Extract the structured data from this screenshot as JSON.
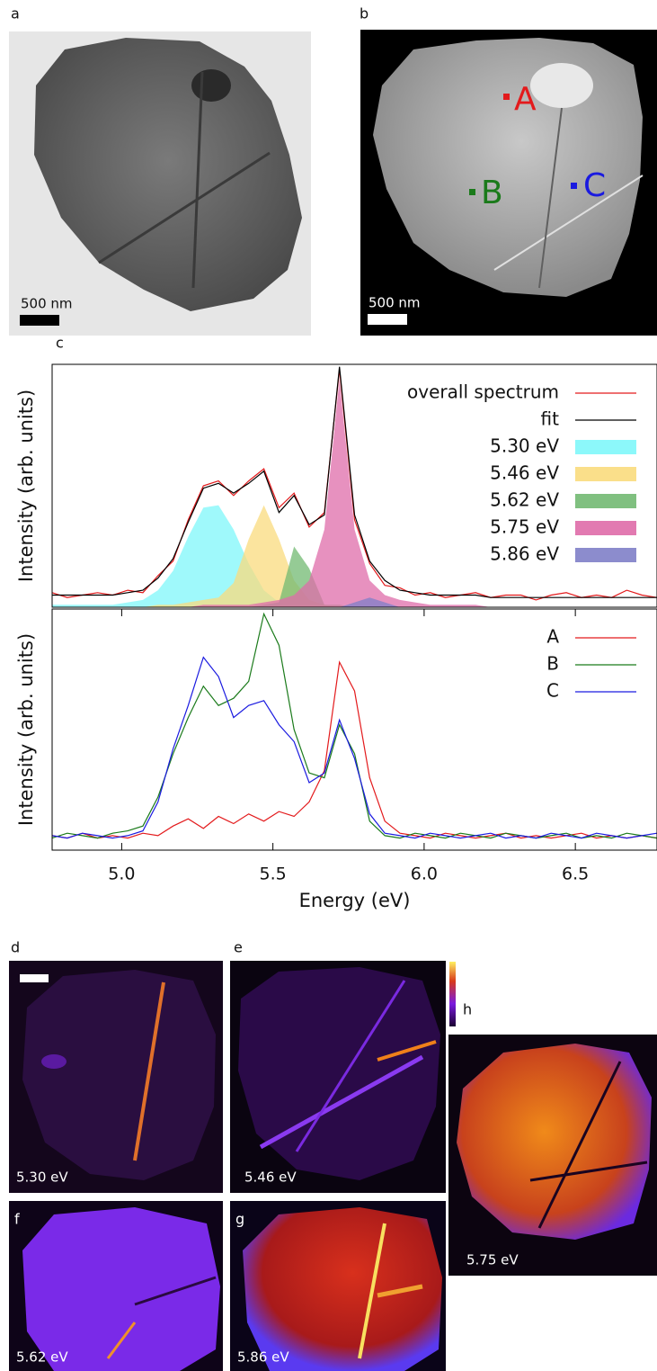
{
  "panels": {
    "a": {
      "label": "a",
      "scale_bar": "500 nm"
    },
    "b": {
      "label": "b",
      "scale_bar": "500 nm",
      "points": [
        "A",
        "B",
        "C"
      ]
    },
    "c": {
      "label": "c"
    },
    "d": {
      "label": "d",
      "energy": "5.30 eV"
    },
    "e": {
      "label": "e",
      "energy": "5.46 eV"
    },
    "f": {
      "label": "f",
      "energy": "5.62 eV"
    },
    "g": {
      "label": "g",
      "energy": "5.86 eV"
    },
    "h": {
      "label": "h",
      "energy": "5.75 eV"
    }
  },
  "chart_data": [
    {
      "type": "line",
      "ylabel": "Intensity (arb. units)",
      "xlim": [
        4.77,
        6.77
      ],
      "ylim": [
        0,
        1
      ],
      "x": [
        4.77,
        4.82,
        4.87,
        4.92,
        4.97,
        5.02,
        5.07,
        5.12,
        5.17,
        5.22,
        5.27,
        5.32,
        5.37,
        5.42,
        5.47,
        5.52,
        5.57,
        5.62,
        5.67,
        5.72,
        5.77,
        5.82,
        5.87,
        5.92,
        5.97,
        6.02,
        6.07,
        6.12,
        6.17,
        6.22,
        6.27,
        6.32,
        6.37,
        6.42,
        6.47,
        6.52,
        6.57,
        6.62,
        6.67,
        6.72,
        6.77
      ],
      "series": [
        {
          "name": "overall spectrum",
          "color": "#e31a1c",
          "values": [
            0.06,
            0.04,
            0.05,
            0.06,
            0.05,
            0.07,
            0.06,
            0.13,
            0.19,
            0.36,
            0.5,
            0.52,
            0.46,
            0.52,
            0.57,
            0.41,
            0.47,
            0.33,
            0.39,
            0.98,
            0.36,
            0.18,
            0.09,
            0.08,
            0.05,
            0.06,
            0.04,
            0.05,
            0.06,
            0.04,
            0.05,
            0.05,
            0.03,
            0.05,
            0.06,
            0.04,
            0.05,
            0.04,
            0.07,
            0.05,
            0.04
          ]
        },
        {
          "name": "fit",
          "color": "#000000",
          "values": [
            0.05,
            0.05,
            0.05,
            0.05,
            0.05,
            0.06,
            0.07,
            0.12,
            0.2,
            0.35,
            0.49,
            0.51,
            0.47,
            0.51,
            0.56,
            0.39,
            0.46,
            0.34,
            0.38,
            0.99,
            0.38,
            0.19,
            0.11,
            0.07,
            0.06,
            0.05,
            0.05,
            0.05,
            0.05,
            0.04,
            0.04,
            0.04,
            0.04,
            0.04,
            0.04,
            0.04,
            0.04,
            0.04,
            0.04,
            0.04,
            0.04
          ]
        },
        {
          "name": "5.30 eV",
          "color": "#7ff7fa",
          "fill": true,
          "values": [
            0.01,
            0.01,
            0.01,
            0.01,
            0.01,
            0.02,
            0.03,
            0.07,
            0.15,
            0.29,
            0.41,
            0.42,
            0.32,
            0.18,
            0.07,
            0.02,
            0.01,
            0,
            0,
            0,
            0,
            0,
            0,
            0,
            0,
            0,
            0,
            0,
            0,
            0,
            0,
            0,
            0,
            0,
            0,
            0,
            0,
            0,
            0,
            0,
            0
          ]
        },
        {
          "name": "5.46 eV",
          "color": "#fadb7d",
          "fill": true,
          "values": [
            0,
            0,
            0,
            0,
            0,
            0,
            0,
            0.01,
            0.01,
            0.02,
            0.03,
            0.04,
            0.1,
            0.28,
            0.42,
            0.28,
            0.11,
            0.03,
            0.01,
            0,
            0,
            0,
            0,
            0,
            0,
            0,
            0,
            0,
            0,
            0,
            0,
            0,
            0,
            0,
            0,
            0,
            0,
            0,
            0,
            0,
            0
          ]
        },
        {
          "name": "5.62 eV",
          "color": "#72b972",
          "fill": true,
          "values": [
            0,
            0,
            0,
            0,
            0,
            0,
            0,
            0,
            0,
            0,
            0,
            0,
            0,
            0,
            0.01,
            0.02,
            0.25,
            0.16,
            0.01,
            0.01,
            0,
            0,
            0,
            0,
            0,
            0,
            0,
            0,
            0,
            0,
            0,
            0,
            0,
            0,
            0,
            0,
            0,
            0,
            0,
            0,
            0
          ]
        },
        {
          "name": "5.75 eV",
          "color": "#df6ca9",
          "fill": true,
          "values": [
            0,
            0,
            0,
            0,
            0,
            0,
            0,
            0,
            0,
            0,
            0.01,
            0.01,
            0.01,
            0.01,
            0.02,
            0.03,
            0.05,
            0.11,
            0.32,
            0.94,
            0.32,
            0.11,
            0.05,
            0.03,
            0.02,
            0.01,
            0.01,
            0.01,
            0.01,
            0,
            0,
            0,
            0,
            0,
            0,
            0,
            0,
            0,
            0,
            0,
            0
          ]
        },
        {
          "name": "5.86 eV",
          "color": "#7f7fc8",
          "fill": true,
          "values": [
            0,
            0,
            0,
            0,
            0,
            0,
            0,
            0,
            0,
            0,
            0,
            0,
            0,
            0,
            0,
            0,
            0,
            0,
            0,
            0,
            0.02,
            0.04,
            0.02,
            0,
            0,
            0,
            0,
            0,
            0,
            0,
            0,
            0,
            0,
            0,
            0,
            0,
            0,
            0,
            0,
            0,
            0
          ]
        }
      ]
    },
    {
      "type": "line",
      "ylabel": "Intensity (arb. units)",
      "xlabel": "Energy (eV)",
      "xlim": [
        4.77,
        6.77
      ],
      "ylim": [
        0,
        1
      ],
      "xticks": [
        {
          "value": 5,
          "label": "5.0"
        },
        5.5,
        {
          "value": 6,
          "label": "6.0"
        },
        6.5
      ],
      "x": [
        4.77,
        4.82,
        4.87,
        4.92,
        4.97,
        5.02,
        5.07,
        5.12,
        5.17,
        5.22,
        5.27,
        5.32,
        5.37,
        5.42,
        5.47,
        5.52,
        5.57,
        5.62,
        5.67,
        5.72,
        5.77,
        5.82,
        5.87,
        5.92,
        5.97,
        6.02,
        6.07,
        6.12,
        6.17,
        6.22,
        6.27,
        6.32,
        6.37,
        6.42,
        6.47,
        6.52,
        6.57,
        6.62,
        6.67,
        6.72,
        6.77
      ],
      "series": [
        {
          "name": "A",
          "color": "#e31a1c",
          "values": [
            0.06,
            0.05,
            0.07,
            0.05,
            0.06,
            0.05,
            0.07,
            0.06,
            0.1,
            0.13,
            0.09,
            0.14,
            0.11,
            0.15,
            0.12,
            0.16,
            0.14,
            0.2,
            0.33,
            0.78,
            0.66,
            0.3,
            0.12,
            0.07,
            0.06,
            0.05,
            0.07,
            0.06,
            0.05,
            0.06,
            0.07,
            0.05,
            0.06,
            0.05,
            0.06,
            0.07,
            0.05,
            0.06,
            0.05,
            0.06,
            0.05
          ]
        },
        {
          "name": "B",
          "color": "#1a7a1a",
          "values": [
            0.05,
            0.07,
            0.06,
            0.05,
            0.07,
            0.08,
            0.1,
            0.22,
            0.4,
            0.55,
            0.68,
            0.6,
            0.63,
            0.7,
            0.98,
            0.85,
            0.5,
            0.32,
            0.3,
            0.52,
            0.4,
            0.12,
            0.06,
            0.05,
            0.07,
            0.06,
            0.05,
            0.07,
            0.06,
            0.05,
            0.07,
            0.06,
            0.05,
            0.06,
            0.07,
            0.05,
            0.06,
            0.05,
            0.07,
            0.06,
            0.05
          ]
        },
        {
          "name": "C",
          "color": "#1a1ae0",
          "values": [
            0.06,
            0.05,
            0.07,
            0.06,
            0.05,
            0.06,
            0.08,
            0.2,
            0.42,
            0.6,
            0.8,
            0.72,
            0.55,
            0.6,
            0.62,
            0.52,
            0.45,
            0.28,
            0.32,
            0.54,
            0.38,
            0.15,
            0.07,
            0.06,
            0.05,
            0.07,
            0.06,
            0.05,
            0.06,
            0.07,
            0.05,
            0.06,
            0.05,
            0.07,
            0.06,
            0.05,
            0.07,
            0.06,
            0.05,
            0.06,
            0.07
          ]
        }
      ]
    }
  ]
}
